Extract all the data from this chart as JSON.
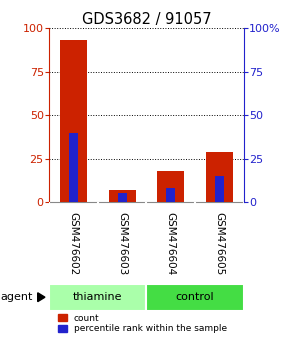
{
  "title": "GDS3682 / 91057",
  "samples": [
    "GSM476602",
    "GSM476603",
    "GSM476604",
    "GSM476605"
  ],
  "count_values": [
    93,
    7,
    18,
    29
  ],
  "percentile_values": [
    40,
    5,
    8,
    15
  ],
  "groups": [
    {
      "label": "thiamine",
      "color": "#AAFFAA",
      "samples": [
        0,
        1
      ]
    },
    {
      "label": "control",
      "color": "#44DD44",
      "samples": [
        2,
        3
      ]
    }
  ],
  "agent_label": "agent",
  "bar_color_red": "#CC2200",
  "bar_color_blue": "#2222CC",
  "ylim": [
    0,
    100
  ],
  "yticks": [
    0,
    25,
    50,
    75,
    100
  ],
  "ylabel_left_color": "#CC2200",
  "ylabel_right_color": "#2222CC",
  "right_ytick_labels": [
    "0",
    "25",
    "50",
    "75",
    "100%"
  ],
  "sample_box_color": "#C8C8C8",
  "background_color": "#FFFFFF",
  "red_bar_width": 0.55,
  "blue_bar_width": 0.18
}
